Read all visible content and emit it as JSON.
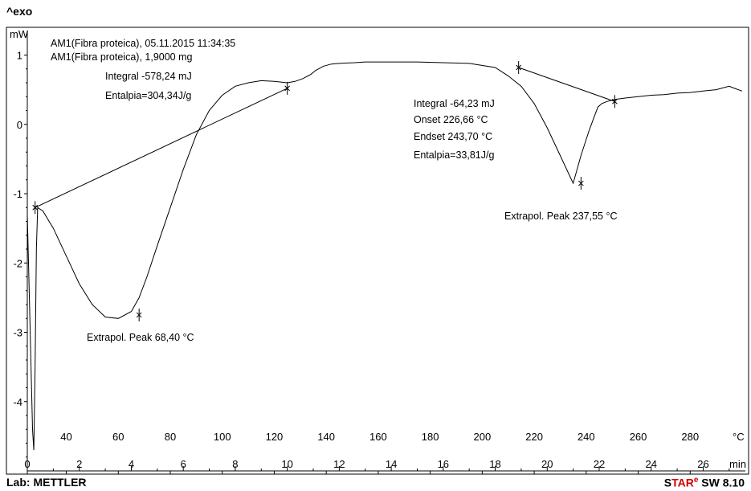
{
  "header": {
    "exo_label": "^exo"
  },
  "footer": {
    "lab_label": "Lab: METTLER",
    "software": {
      "s": "S",
      "tar": "TAR",
      "e": "e",
      "rest": " SW 8.10"
    }
  },
  "chart_data": {
    "type": "line",
    "ylabel": "mW",
    "x_time_unit": "min",
    "x_temp_unit": "°C",
    "xlim": [
      0,
      27.5
    ],
    "ylim": [
      -5,
      1.4
    ],
    "y_ticks": [
      "1",
      "0",
      "-1",
      "-2",
      "-3",
      "-4"
    ],
    "y_tick_values": [
      1,
      0,
      -1,
      -2,
      -3,
      -4
    ],
    "time_ticks": [
      0,
      2,
      4,
      6,
      8,
      10,
      12,
      14,
      16,
      18,
      20,
      22,
      24,
      26
    ],
    "temp_ticks": [
      {
        "t": 40,
        "time": 1.5
      },
      {
        "t": 60,
        "time": 3.5
      },
      {
        "t": 80,
        "time": 5.5
      },
      {
        "t": 100,
        "time": 7.5
      },
      {
        "t": 120,
        "time": 9.5
      },
      {
        "t": 140,
        "time": 11.5
      },
      {
        "t": 160,
        "time": 13.5
      },
      {
        "t": 180,
        "time": 15.5
      },
      {
        "t": 200,
        "time": 17.5
      },
      {
        "t": 220,
        "time": 19.5
      },
      {
        "t": 240,
        "time": 21.5
      },
      {
        "t": 260,
        "time": 23.5
      },
      {
        "t": 280,
        "time": 25.5
      }
    ],
    "series": [
      {
        "x": [
          0.0,
          0.1,
          0.2,
          0.25,
          0.3,
          0.35,
          0.4,
          0.6,
          1.0,
          1.5,
          2.0,
          2.5,
          3.0,
          3.5,
          4.0,
          4.3,
          4.6,
          5.0,
          5.5,
          6.0,
          6.5,
          7.0,
          7.5,
          8.0,
          8.5,
          9.0,
          9.5,
          10.0,
          10.3,
          10.6,
          10.9,
          11.1,
          11.4,
          11.7,
          12.0,
          12.3,
          12.6,
          13.0,
          14.0,
          15.0,
          16.0,
          17.0,
          18.0,
          18.5,
          19.0,
          19.5,
          20.0,
          20.5,
          21.0,
          21.3,
          21.6,
          21.8,
          21.95,
          22.1,
          22.3,
          22.6,
          23.0,
          23.5,
          24.0,
          24.5,
          25.0,
          25.5,
          26.0,
          26.5,
          27.0,
          27.2,
          27.5
        ],
        "y": [
          -1.3,
          -2.8,
          -4.4,
          -4.7,
          -3.5,
          -1.8,
          -1.2,
          -1.25,
          -1.5,
          -1.9,
          -2.3,
          -2.6,
          -2.78,
          -2.8,
          -2.7,
          -2.5,
          -2.2,
          -1.75,
          -1.2,
          -0.65,
          -0.15,
          0.2,
          0.42,
          0.55,
          0.6,
          0.63,
          0.62,
          0.6,
          0.62,
          0.66,
          0.72,
          0.78,
          0.84,
          0.87,
          0.88,
          0.885,
          0.89,
          0.9,
          0.9,
          0.9,
          0.89,
          0.88,
          0.82,
          0.7,
          0.55,
          0.3,
          -0.05,
          -0.45,
          -0.85,
          -0.45,
          -0.1,
          0.1,
          0.25,
          0.3,
          0.33,
          0.36,
          0.38,
          0.4,
          0.42,
          0.43,
          0.45,
          0.46,
          0.48,
          0.5,
          0.55,
          0.52,
          0.48
        ]
      }
    ],
    "baselines": [
      {
        "x": [
          0.3,
          10.0
        ],
        "y": [
          -1.2,
          0.52
        ]
      },
      {
        "x": [
          18.9,
          22.6
        ],
        "y": [
          0.82,
          0.33
        ]
      }
    ],
    "markers": [
      {
        "time": 0.3,
        "y": -1.2
      },
      {
        "time": 10.0,
        "y": 0.52
      },
      {
        "time": 4.3,
        "y": -2.75
      },
      {
        "time": 18.9,
        "y": 0.82
      },
      {
        "time": 22.6,
        "y": 0.33
      },
      {
        "time": 21.3,
        "y": -0.85
      }
    ],
    "annotations": {
      "sample1": "AM1(Fibra proteica), 05.11.2015 11:34:35",
      "sample2": "AM1(Fibra proteica), 1,9000 mg",
      "integral1": "Integral   -578,24 mJ",
      "entalpia1": "Entalpia=304,34J/g",
      "integral2": "Integral   -64,23 mJ",
      "onset": "Onset   226,66 °C",
      "endset": "Endset   243,70 °C",
      "entalpia2": "Entalpia=33,81J/g",
      "peak1": "Extrapol. Peak   68,40 °C",
      "peak2": "Extrapol. Peak   237,55 °C"
    }
  }
}
